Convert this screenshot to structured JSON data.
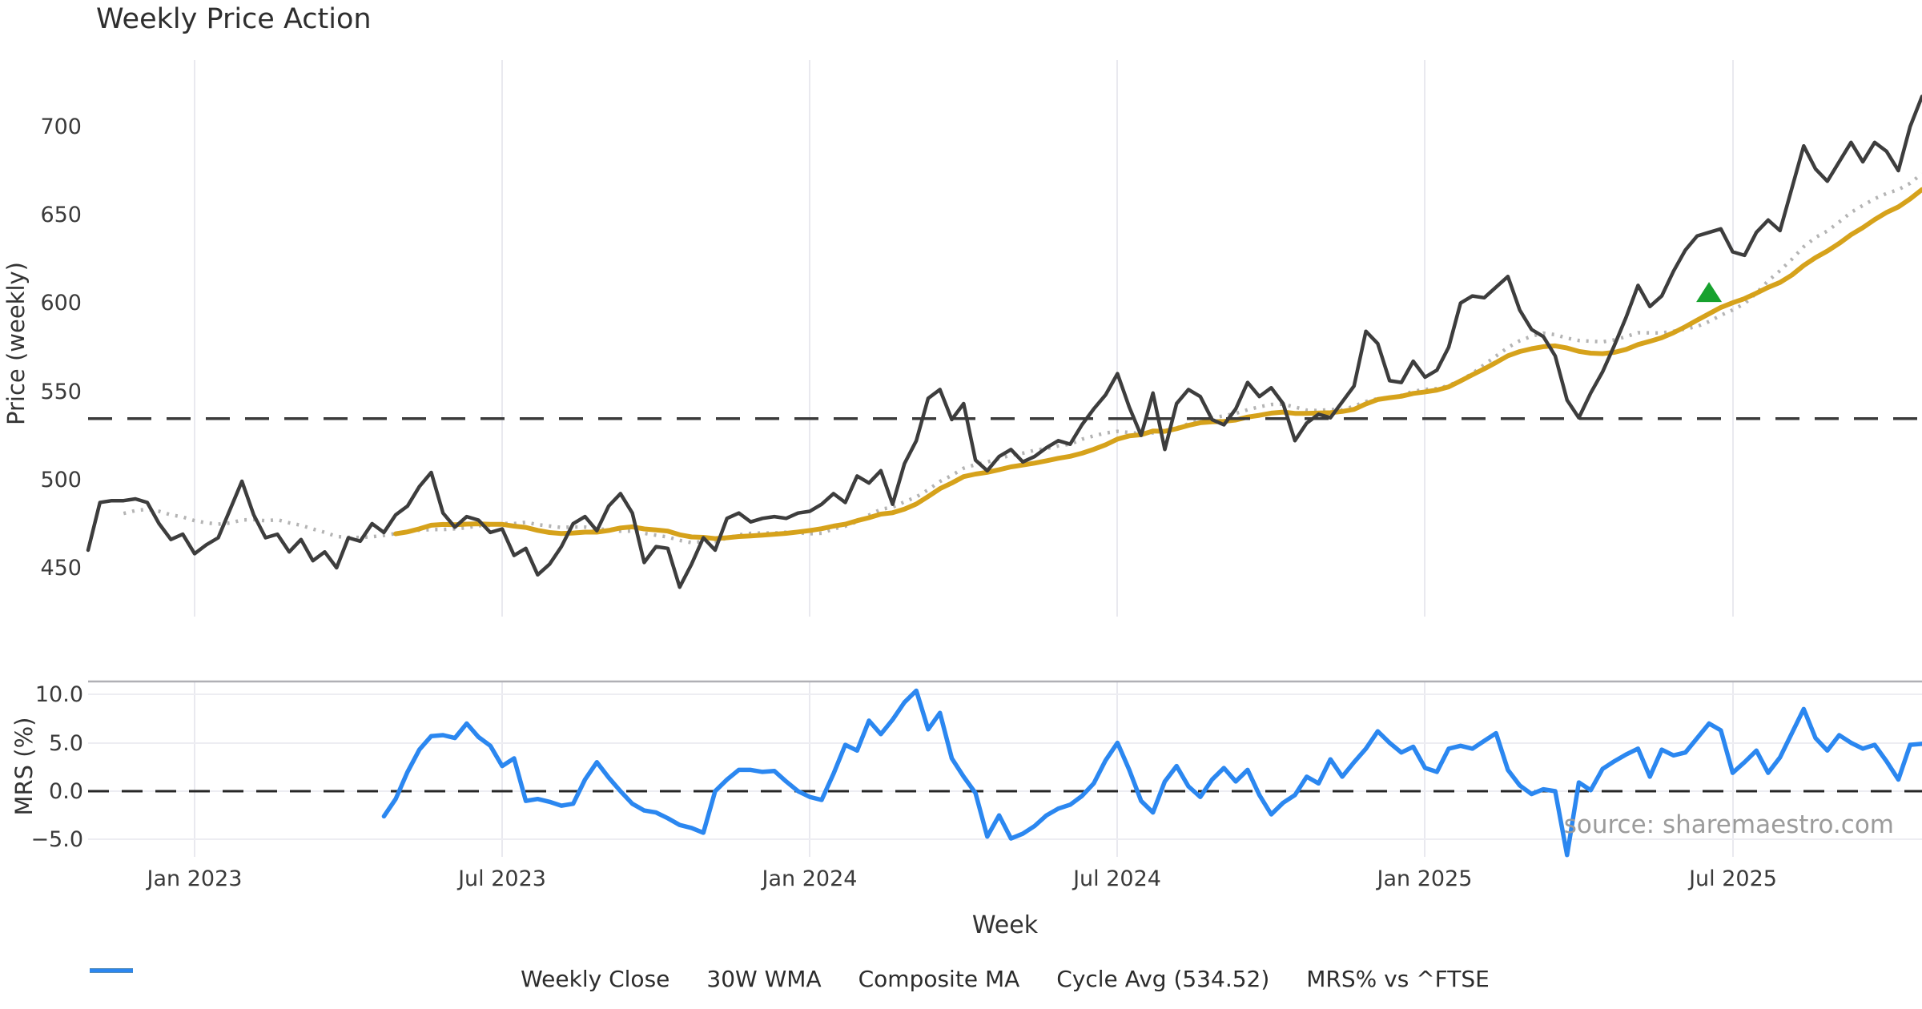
{
  "title": "Weekly Price Action",
  "watermark": "source: sharemaestro.com",
  "legend": [
    {
      "label": "Weekly Close",
      "style": "solid",
      "color": "#3d3d3d"
    },
    {
      "label": "30W WMA",
      "style": "solid",
      "color": "#d6a21b"
    },
    {
      "label": "Composite MA",
      "style": "dotted",
      "color": "#b4b4b4"
    },
    {
      "label": "Cycle Avg (534.52)",
      "style": "dashed",
      "color": "#3a3a3a"
    },
    {
      "label": "MRS% vs ^FTSE",
      "style": "solid",
      "color": "#2b87f0"
    }
  ],
  "chart_data": [
    {
      "type": "line",
      "panel": "price",
      "title": "Weekly Price Action",
      "ylabel": "Price (weekly)",
      "x_start_week": "2022-10-31",
      "x_freq_days": 7,
      "n_weeks": 156,
      "x_tick_indices": [
        9,
        35,
        61,
        87,
        113,
        139
      ],
      "x_tick_labels": [
        "Jan 2023",
        "Jul 2023",
        "Jan 2024",
        "Jul 2024",
        "Jan 2025",
        "Jul 2025"
      ],
      "ylim": [
        422,
        738
      ],
      "yticks": [
        450,
        500,
        550,
        600,
        650,
        700
      ],
      "ytick_labels": [
        "450",
        "500",
        "550",
        "600",
        "650",
        "700"
      ],
      "grid": "vertical-only",
      "cycle_avg": 534.52,
      "signal_marker": {
        "index": 137,
        "value": 606,
        "shape": "triangle-up",
        "color": "#17a12e"
      },
      "series": [
        {
          "name": "Weekly Close",
          "color": "#3d3d3d",
          "style": "solid",
          "values": [
            460,
            487,
            488,
            488,
            489,
            487,
            475,
            466,
            469,
            458,
            463,
            467,
            483,
            499,
            480,
            467,
            469,
            459,
            466,
            454,
            459,
            450,
            467,
            465,
            475,
            470,
            480,
            485,
            496,
            504,
            481,
            473,
            479,
            477,
            470,
            472,
            457,
            461,
            446,
            452,
            462,
            475,
            479,
            471,
            485,
            492,
            481,
            453,
            462,
            461,
            439,
            452,
            467,
            460,
            478,
            481,
            476,
            478,
            479,
            478,
            481,
            482,
            486,
            492,
            487,
            502,
            498,
            505,
            486,
            509,
            522,
            546,
            551,
            534,
            543,
            511,
            505,
            513,
            517,
            510,
            513,
            518,
            522,
            520,
            531,
            540,
            548,
            560,
            541,
            525,
            549,
            517,
            543,
            551,
            547,
            534,
            531,
            540,
            555,
            547,
            552,
            543,
            522,
            532,
            537,
            535,
            544,
            553,
            584,
            577,
            556,
            555,
            567,
            558,
            562,
            575,
            600,
            604,
            603,
            609,
            615,
            596,
            585,
            581,
            570,
            545,
            535,
            549,
            561,
            576,
            592,
            610,
            598,
            604,
            618,
            630,
            638,
            640,
            642,
            629,
            627,
            640,
            647,
            641,
            665,
            689,
            676,
            669,
            680,
            691,
            680,
            691,
            686,
            675,
            700,
            717
          ]
        },
        {
          "name": "30W WMA",
          "color": "#d6a21b",
          "style": "solid",
          "derived": "linear_weighted_ma_of_weekly_close",
          "window": 30,
          "start_index": 26
        },
        {
          "name": "Composite MA",
          "color": "#b4b4b4",
          "style": "dotted",
          "derived": "simple_ma_of_weekly_close",
          "window": 16,
          "start_index": 3
        },
        {
          "name": "Cycle Avg",
          "color": "#3a3a3a",
          "style": "dashed",
          "value": 534.52
        }
      ]
    },
    {
      "type": "line",
      "panel": "mrs",
      "ylabel": "MRS (%)",
      "xlabel": "Week",
      "ylim": [
        -6.8,
        11.4
      ],
      "yticks": [
        10.0,
        5.0,
        0.0,
        -5.0
      ],
      "ytick_labels": [
        "10.0",
        "5.0",
        "0.0",
        "−5.0"
      ],
      "zero_line": {
        "style": "dashed",
        "color": "#262626",
        "value": 0.0
      },
      "series": [
        {
          "name": "MRS% vs ^FTSE",
          "color": "#2b87f0",
          "style": "solid",
          "start_index": 25,
          "values": [
            -2.6,
            -0.8,
            2.0,
            4.3,
            5.7,
            5.8,
            5.5,
            7.0,
            5.6,
            4.7,
            2.6,
            3.4,
            -1.0,
            -0.8,
            -1.1,
            -1.5,
            -1.3,
            1.2,
            3.0,
            1.4,
            0.0,
            -1.3,
            -2.0,
            -2.2,
            -2.8,
            -3.5,
            -3.8,
            -4.3,
            0.0,
            1.2,
            2.2,
            2.2,
            2.0,
            2.1,
            1.0,
            0.0,
            -0.6,
            -0.9,
            1.8,
            4.8,
            4.2,
            7.3,
            5.9,
            7.4,
            9.2,
            10.4,
            6.4,
            8.1,
            3.4,
            1.5,
            -0.2,
            -4.7,
            -2.5,
            -4.9,
            -4.4,
            -3.6,
            -2.5,
            -1.8,
            -1.4,
            -0.5,
            0.8,
            3.2,
            5.0,
            2.2,
            -1.0,
            -2.2,
            1.0,
            2.6,
            0.5,
            -0.6,
            1.2,
            2.4,
            1.0,
            2.2,
            -0.4,
            -2.4,
            -1.2,
            -0.4,
            1.5,
            0.8,
            3.3,
            1.5,
            3.0,
            4.4,
            6.2,
            5.0,
            4.0,
            4.6,
            2.4,
            2.0,
            4.4,
            4.7,
            4.4,
            5.2,
            6.0,
            2.2,
            0.6,
            -0.3,
            0.2,
            0.0,
            -6.6,
            0.9,
            0.1,
            2.3,
            3.1,
            3.8,
            4.4,
            1.5,
            4.3,
            3.7,
            4.0,
            5.5,
            7.0,
            6.3,
            1.9,
            3.0,
            4.2,
            1.9,
            3.5,
            6.0,
            8.5,
            5.5,
            4.2,
            5.8,
            5.0,
            4.4,
            4.8,
            3.1,
            1.2,
            4.8,
            4.9
          ]
        }
      ]
    }
  ]
}
